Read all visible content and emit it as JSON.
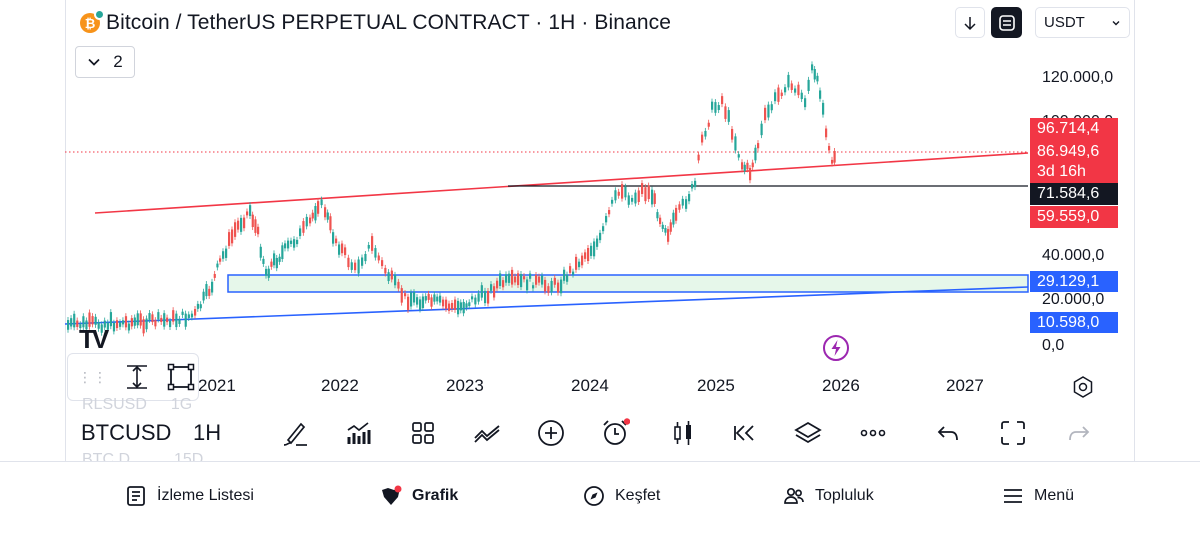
{
  "header": {
    "title": "Bitcoin / TetherUS PERPETUAL CONTRACT · 1H · Binance",
    "currency": "USDT",
    "indicators_count": "2"
  },
  "chart": {
    "price_axis": [
      "120.000,0",
      "100.000,0",
      "40.000,0",
      "20.000,0",
      "0,0"
    ],
    "price_tags": {
      "upper": "96.714,4",
      "last": "86.949,6",
      "countdown": "3d 16h",
      "level": "71.584,6",
      "trendline": "59.559,0",
      "zone_top": "29.129,1",
      "support": "10.598,0"
    },
    "years": [
      "2021",
      "2022",
      "2023",
      "2024",
      "2025",
      "2026",
      "2027"
    ],
    "colors": {
      "up": "#26a69a",
      "down": "#ef5350",
      "resistance_line": "#f23645",
      "support_line": "#2962ff",
      "zone_fill": "#e6f7ea"
    }
  },
  "toolbar": {
    "symbol": "BTCUSD",
    "interval": "1H",
    "watch_behind_top": [
      "RLSUSD",
      "1G"
    ],
    "watch_behind_bottom": [
      "BTC.D",
      "15D"
    ],
    "tools": [
      "brush-icon",
      "indicators-icon",
      "grid-icon",
      "compare-icon",
      "add-icon",
      "alert-icon",
      "candles-icon",
      "replay-icon",
      "layers-icon",
      "more-icon",
      "undo-icon",
      "fullscreen-icon",
      "redo-icon"
    ]
  },
  "bottom_nav": {
    "items": [
      {
        "label": "İzleme Listesi",
        "icon": "watchlist-icon"
      },
      {
        "label": "Grafik",
        "icon": "chart-icon"
      },
      {
        "label": "Keşfet",
        "icon": "compass-icon"
      },
      {
        "label": "Topluluk",
        "icon": "community-icon"
      },
      {
        "label": "Menü",
        "icon": "menu-icon"
      }
    ]
  }
}
